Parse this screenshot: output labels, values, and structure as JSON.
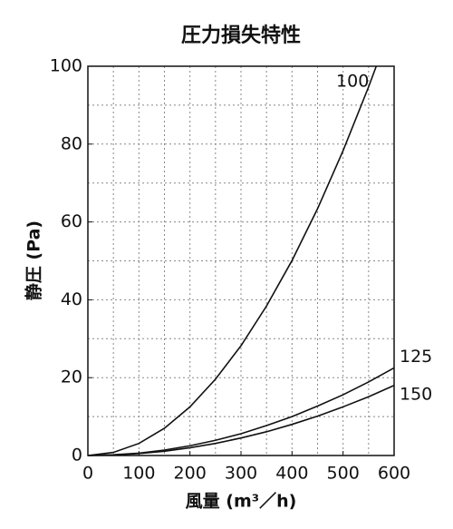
{
  "chart_data": {
    "type": "line",
    "title": "圧力損失特性",
    "x_label": "風量 (m³／h)",
    "y_label": "静圧 (Pa)",
    "xlim": [
      0,
      600
    ],
    "xticks": [
      0,
      100,
      200,
      300,
      400,
      500,
      600
    ],
    "ylim": [
      0,
      100
    ],
    "yticks": [
      0,
      20,
      40,
      60,
      80,
      100
    ],
    "xgrid": [
      50,
      100,
      150,
      200,
      250,
      300,
      350,
      400,
      450,
      500,
      550
    ],
    "ygrid": [
      10,
      20,
      30,
      40,
      50,
      60,
      70,
      80,
      90
    ],
    "grid": true,
    "series": [
      {
        "name": "100",
        "color": "#111111",
        "x": [
          0,
          50,
          100,
          150,
          200,
          250,
          300,
          350,
          400,
          450,
          500,
          550,
          565
        ],
        "values": [
          0,
          0.8,
          3.1,
          7.0,
          12.5,
          19.6,
          28.2,
          38.4,
          50.1,
          63.4,
          78.3,
          94.7,
          100
        ]
      },
      {
        "name": "125",
        "color": "#111111",
        "x": [
          0,
          50,
          100,
          150,
          200,
          250,
          300,
          350,
          400,
          450,
          500,
          550,
          600
        ],
        "values": [
          0,
          0.2,
          0.6,
          1.4,
          2.5,
          3.9,
          5.6,
          7.7,
          10,
          12.7,
          15.6,
          18.9,
          22.5
        ]
      },
      {
        "name": "150",
        "color": "#111111",
        "x": [
          0,
          50,
          100,
          150,
          200,
          250,
          300,
          350,
          400,
          450,
          500,
          550,
          600
        ],
        "values": [
          0,
          0.1,
          0.5,
          1.1,
          2,
          3.1,
          4.5,
          6.1,
          8,
          10.1,
          12.5,
          15.1,
          18
        ]
      }
    ]
  }
}
